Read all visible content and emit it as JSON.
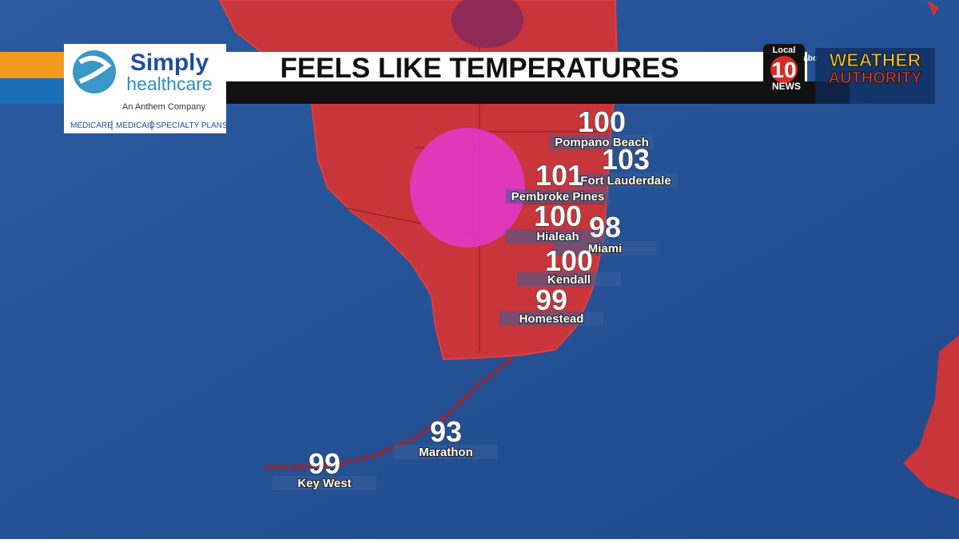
{
  "header": {
    "title": "FEELS LIKE TEMPERATURES"
  },
  "sponsor": {
    "name": "Simply",
    "name_line2": "healthcare",
    "tagline": "An Anthem Company",
    "plans": [
      "MEDICARE",
      "MEDICAID",
      "SPECIALTY PLANS"
    ]
  },
  "station": {
    "local": "Local",
    "channel": "10",
    "news": "NEWS",
    "network": "abc",
    "brand": [
      "WEATHER",
      "AUTHORITY"
    ]
  },
  "locations": [
    {
      "name": "Pompano Beach",
      "value": 100
    },
    {
      "name": "Fort Lauderdale",
      "value": 103
    },
    {
      "name": "Pembroke Pines",
      "value": 101
    },
    {
      "name": "Hialeah",
      "value": 100
    },
    {
      "name": "Miami",
      "value": 98
    },
    {
      "name": "Kendall",
      "value": 100
    },
    {
      "name": "Homestead",
      "value": 99
    },
    {
      "name": "Marathon",
      "value": 93
    },
    {
      "name": "Key West",
      "value": 99
    }
  ]
}
